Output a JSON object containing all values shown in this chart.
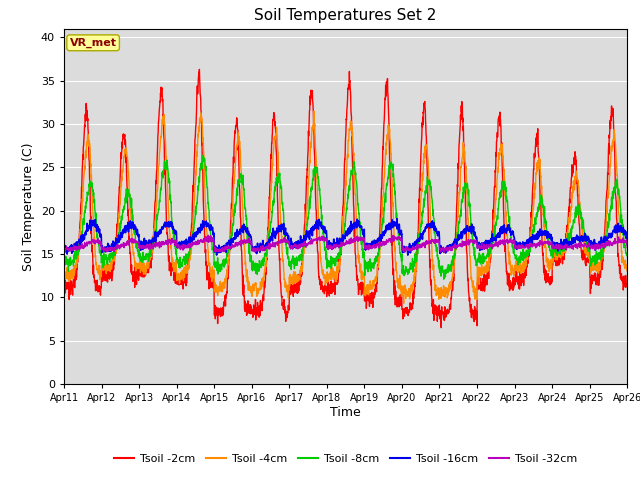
{
  "title": "Soil Temperatures Set 2",
  "xlabel": "Time",
  "ylabel": "Soil Temperature (C)",
  "ylim": [
    0,
    41
  ],
  "yticks": [
    0,
    5,
    10,
    15,
    20,
    25,
    30,
    35,
    40
  ],
  "date_labels": [
    "Apr 11",
    "Apr 12",
    "Apr 13",
    "Apr 14",
    "Apr 15",
    "Apr 16",
    "Apr 17",
    "Apr 18",
    "Apr 19",
    "Apr 20",
    "Apr 21",
    "Apr 22",
    "Apr 23",
    "Apr 24",
    "Apr 25",
    "Apr 26"
  ],
  "series_colors": {
    "Tsoil -2cm": "#FF0000",
    "Tsoil -4cm": "#FF8C00",
    "Tsoil -8cm": "#00CC00",
    "Tsoil -16cm": "#0000EE",
    "Tsoil -32cm": "#BB00BB"
  },
  "bg_color": "#DCDCDC",
  "fig_color": "#FFFFFF",
  "annotation_text": "VR_met",
  "annotation_bg": "#FFFF99",
  "annotation_border": "#AAAA00",
  "annotation_color": "#8B0000",
  "grid_color": "#FFFFFF",
  "n_days": 15,
  "n_per_day": 144
}
